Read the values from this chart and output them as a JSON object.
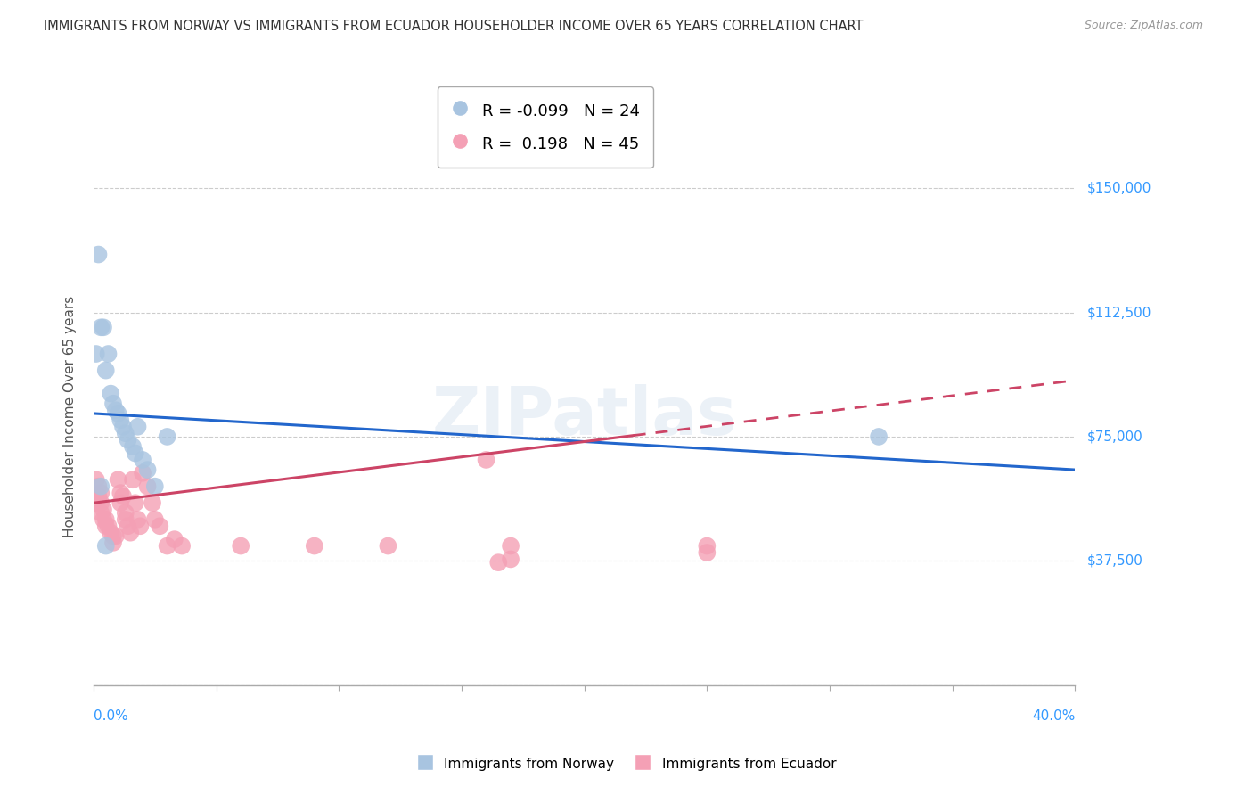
{
  "title": "IMMIGRANTS FROM NORWAY VS IMMIGRANTS FROM ECUADOR HOUSEHOLDER INCOME OVER 65 YEARS CORRELATION CHART",
  "source": "Source: ZipAtlas.com",
  "ylabel": "Householder Income Over 65 years",
  "xlim": [
    0.0,
    0.4
  ],
  "ylim": [
    0,
    162000
  ],
  "yticks": [
    0,
    37500,
    75000,
    112500,
    150000
  ],
  "norway_R": -0.099,
  "norway_N": 24,
  "ecuador_R": 0.198,
  "ecuador_N": 45,
  "norway_color": "#a8c4e0",
  "ecuador_color": "#f4a0b5",
  "norway_line_color": "#2266cc",
  "ecuador_line_color": "#cc4466",
  "background_color": "#ffffff",
  "grid_color": "#cccccc",
  "watermark": "ZIPatlas",
  "norway_x": [
    0.002,
    0.003,
    0.004,
    0.005,
    0.006,
    0.007,
    0.008,
    0.009,
    0.01,
    0.011,
    0.012,
    0.013,
    0.014,
    0.016,
    0.017,
    0.018,
    0.02,
    0.022,
    0.025,
    0.03,
    0.001,
    0.003,
    0.005,
    0.32
  ],
  "norway_y": [
    130000,
    108000,
    108000,
    95000,
    100000,
    88000,
    85000,
    83000,
    82000,
    80000,
    78000,
    76000,
    74000,
    72000,
    70000,
    78000,
    68000,
    65000,
    60000,
    75000,
    100000,
    60000,
    42000,
    75000
  ],
  "ecuador_x": [
    0.001,
    0.001,
    0.002,
    0.002,
    0.003,
    0.003,
    0.003,
    0.004,
    0.004,
    0.005,
    0.005,
    0.006,
    0.007,
    0.008,
    0.008,
    0.009,
    0.01,
    0.011,
    0.011,
    0.012,
    0.013,
    0.013,
    0.014,
    0.015,
    0.016,
    0.017,
    0.018,
    0.019,
    0.02,
    0.022,
    0.024,
    0.025,
    0.027,
    0.03,
    0.033,
    0.036,
    0.06,
    0.09,
    0.12,
    0.16,
    0.17,
    0.25,
    0.17,
    0.165,
    0.25
  ],
  "ecuador_y": [
    62000,
    55000,
    60000,
    57000,
    58000,
    55000,
    52000,
    53000,
    50000,
    50000,
    48000,
    48000,
    46000,
    45000,
    43000,
    45000,
    62000,
    58000,
    55000,
    57000,
    52000,
    50000,
    48000,
    46000,
    62000,
    55000,
    50000,
    48000,
    64000,
    60000,
    55000,
    50000,
    48000,
    42000,
    44000,
    42000,
    42000,
    42000,
    42000,
    68000,
    42000,
    42000,
    38000,
    37000,
    40000
  ]
}
